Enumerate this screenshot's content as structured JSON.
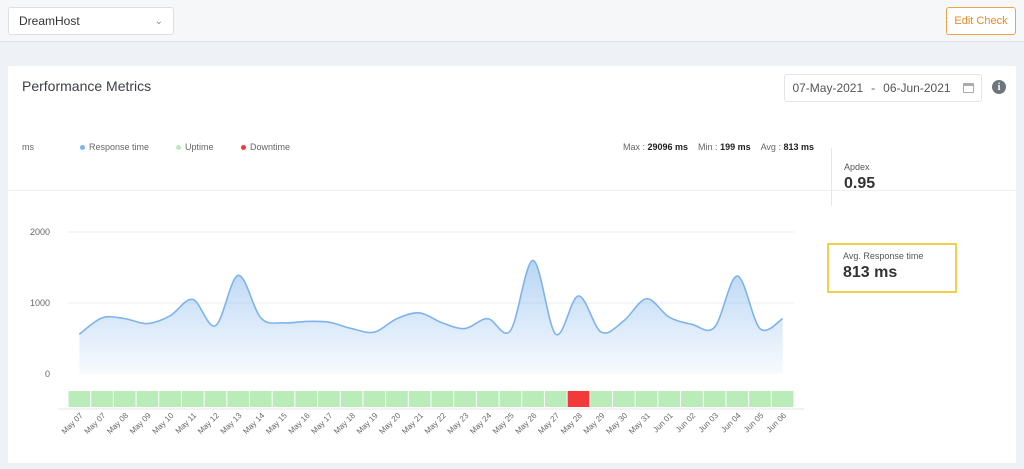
{
  "topbar": {
    "monitor_select": "DreamHost",
    "edit_button": "Edit Check"
  },
  "card": {
    "title": "Performance Metrics",
    "date_from": "07-May-2021",
    "date_sep": "-",
    "date_to": "06-Jun-2021"
  },
  "legend": {
    "unit": "ms",
    "response": "Response time",
    "uptime": "Uptime",
    "downtime": "Downtime"
  },
  "stats": {
    "max_label": "Max :",
    "max_value": "29096 ms",
    "min_label": "Min :",
    "min_value": "199 ms",
    "avg_label": "Avg :",
    "avg_value": "813 ms"
  },
  "apdex": {
    "label": "Apdex",
    "value": "0.95"
  },
  "avg_response": {
    "label": "Avg. Response time",
    "value": "813 ms"
  },
  "colors": {
    "response": "#7eb3ec",
    "uptime": "#b9ecb9",
    "downtime": "#f23a3a",
    "highlight": "#f2cf4a",
    "accent": "#e98a22"
  },
  "chart_data": {
    "type": "area",
    "ylabel": "ms",
    "ylim": [
      0,
      2000
    ],
    "yticks": [
      0,
      1000,
      2000
    ],
    "x": [
      "May 07",
      "May 07",
      "May 08",
      "May 09",
      "May 10",
      "May 11",
      "May 12",
      "May 13",
      "May 14",
      "May 15",
      "May 16",
      "May 17",
      "May 18",
      "May 19",
      "May 20",
      "May 21",
      "May 22",
      "May 23",
      "May 24",
      "May 25",
      "May 26",
      "May 27",
      "May 28",
      "May 29",
      "May 30",
      "May 31",
      "Jun 01",
      "Jun 02",
      "Jun 03",
      "Jun 04",
      "Jun 05",
      "Jun 06"
    ],
    "series": [
      {
        "name": "Response time",
        "values": [
          560,
          790,
          780,
          710,
          820,
          1050,
          680,
          1390,
          790,
          720,
          740,
          730,
          640,
          590,
          780,
          860,
          720,
          640,
          780,
          610,
          1600,
          560,
          1100,
          590,
          750,
          1060,
          800,
          700,
          660,
          1380,
          640,
          780
        ]
      }
    ],
    "status": [
      "up",
      "up",
      "up",
      "up",
      "up",
      "up",
      "up",
      "up",
      "up",
      "up",
      "up",
      "up",
      "up",
      "up",
      "up",
      "up",
      "up",
      "up",
      "up",
      "up",
      "up",
      "up",
      "down",
      "up",
      "up",
      "up",
      "up",
      "up",
      "up",
      "up",
      "up",
      "up"
    ],
    "grid": true
  }
}
